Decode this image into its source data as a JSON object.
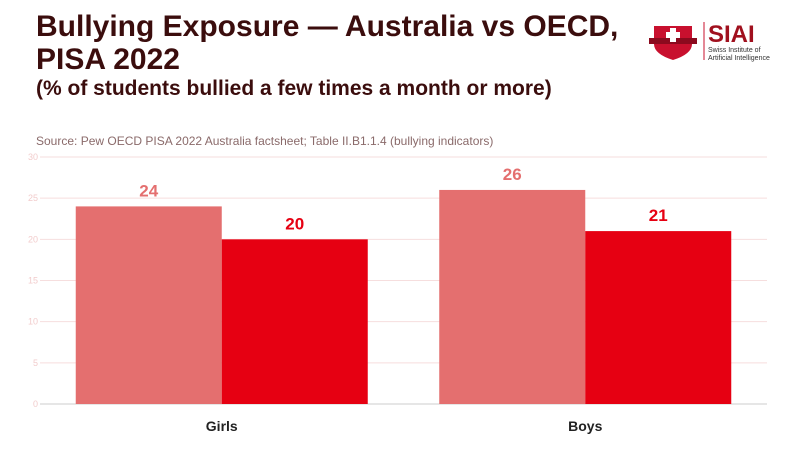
{
  "title": {
    "main": "Bullying Exposure — Australia vs OECD, PISA 2022",
    "sub": "(% of students bullied a few times a month or more)"
  },
  "source": "Source: Pew OECD PISA 2022 Australia factsheet; Table II.B1.1.4 (bullying indicators)",
  "logo": {
    "name": "SIAI",
    "tagline": "Swiss Institute of Artificial Intelligence"
  },
  "colors": {
    "series1": "#e46f6f",
    "series2": "#e60012",
    "label1": "#e46f6f",
    "label2": "#e60012",
    "grid": "#f6dede"
  },
  "chart_data": {
    "type": "bar",
    "categories": [
      "Girls",
      "Boys"
    ],
    "series": [
      {
        "values": [
          24,
          26
        ]
      },
      {
        "values": [
          20,
          21
        ]
      }
    ],
    "ylim": [
      0,
      30
    ],
    "yticks": [
      0,
      5,
      10,
      15,
      20,
      25,
      30
    ],
    "grid": true
  }
}
